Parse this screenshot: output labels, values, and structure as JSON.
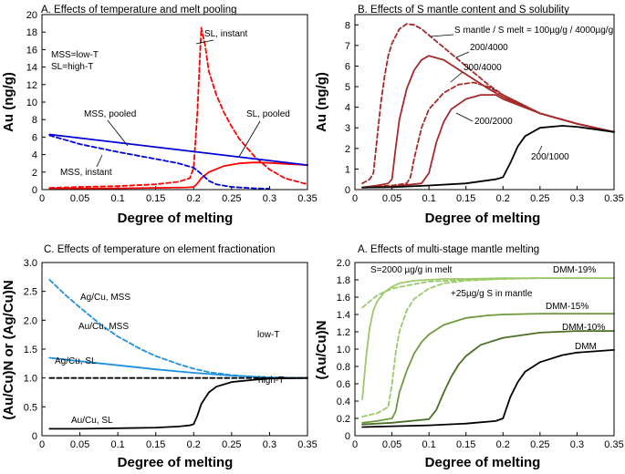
{
  "chart_data": [
    {
      "type": "line",
      "title": "A. Effects of temperature and melt pooling",
      "xlabel": "Degree of melting",
      "ylabel": "Au (ng/g)",
      "xlim": [
        0,
        0.35
      ],
      "ylim": [
        0,
        20
      ],
      "xticks": [
        "0",
        "0.05",
        "0.1",
        "0.15",
        "0.2",
        "0.25",
        "0.3",
        "0.35"
      ],
      "yticks": [
        "0",
        "2",
        "4",
        "6",
        "8",
        "10",
        "12",
        "14",
        "16",
        "18",
        "20"
      ],
      "series": [
        {
          "name": "SL, instant",
          "color": "#ff0000",
          "dash": true,
          "x": [
            0.01,
            0.05,
            0.1,
            0.15,
            0.18,
            0.195,
            0.2,
            0.205,
            0.21,
            0.215,
            0.22,
            0.23,
            0.24,
            0.25,
            0.26,
            0.28,
            0.3,
            0.32,
            0.35
          ],
          "y": [
            0.2,
            0.3,
            0.4,
            0.6,
            0.9,
            1.3,
            2.5,
            9.0,
            18.5,
            16.5,
            13.5,
            10.8,
            8.8,
            7.2,
            5.8,
            3.8,
            2.3,
            1.3,
            0.6
          ]
        },
        {
          "name": "SL, pooled",
          "color": "#ff0000",
          "dash": false,
          "x": [
            0.01,
            0.05,
            0.1,
            0.15,
            0.19,
            0.2,
            0.205,
            0.21,
            0.22,
            0.24,
            0.26,
            0.28,
            0.3,
            0.32,
            0.35
          ],
          "y": [
            0.1,
            0.12,
            0.15,
            0.2,
            0.25,
            0.3,
            0.7,
            1.3,
            2.0,
            2.7,
            3.0,
            3.1,
            3.05,
            2.95,
            2.8
          ]
        },
        {
          "name": "MSS, pooled",
          "color": "#0000dd",
          "dash": false,
          "x": [
            0.01,
            0.35
          ],
          "y": [
            6.3,
            2.8
          ]
        },
        {
          "name": "MSS, instant",
          "color": "#0000dd",
          "dash": true,
          "x": [
            0.01,
            0.05,
            0.1,
            0.15,
            0.18,
            0.2,
            0.21,
            0.22,
            0.23,
            0.25,
            0.28,
            0.3
          ],
          "y": [
            6.2,
            5.2,
            4.3,
            3.5,
            3.0,
            2.5,
            1.8,
            1.0,
            0.6,
            0.3,
            0.15,
            0.1
          ]
        }
      ],
      "annotations": [
        "SL, instant",
        "SL, pooled",
        "MSS, pooled",
        "MSS, instant",
        "MSS=low-T",
        "SL=high-T"
      ]
    },
    {
      "type": "line",
      "title": "B. Effects of S mantle content and S solubility",
      "xlabel": "Degree of melting",
      "ylabel": "Au (ng/g)",
      "xlim": [
        0,
        0.35
      ],
      "ylim": [
        0,
        8.5
      ],
      "xticks": [
        "0",
        "0.05",
        "0.1",
        "0.15",
        "0.2",
        "0.25",
        "0.3",
        "0.35"
      ],
      "yticks": [
        "0",
        "1",
        "2",
        "3",
        "4",
        "5",
        "6",
        "7",
        "8"
      ],
      "series": [
        {
          "name": "100/4000",
          "color": "#a52a2a",
          "dash": true,
          "x": [
            0.01,
            0.02,
            0.025,
            0.03,
            0.035,
            0.04,
            0.045,
            0.05,
            0.06,
            0.07,
            0.08,
            0.09,
            0.1,
            0.12,
            0.15,
            0.18,
            0.2,
            0.25,
            0.3,
            0.35
          ],
          "y": [
            0.3,
            0.5,
            0.8,
            2.5,
            4.2,
            5.5,
            6.5,
            7.1,
            7.8,
            8.05,
            8.0,
            7.8,
            7.5,
            6.9,
            6.0,
            5.1,
            4.6,
            3.7,
            3.2,
            2.8
          ]
        },
        {
          "name": "200/4000",
          "color": "#a52a2a",
          "dash": false,
          "x": [
            0.01,
            0.03,
            0.045,
            0.05,
            0.055,
            0.06,
            0.07,
            0.08,
            0.09,
            0.1,
            0.12,
            0.15,
            0.18,
            0.2,
            0.25,
            0.3,
            0.35
          ],
          "y": [
            0.1,
            0.2,
            0.3,
            0.5,
            2.0,
            3.4,
            4.9,
            5.8,
            6.3,
            6.5,
            6.3,
            5.6,
            4.9,
            4.5,
            3.7,
            3.2,
            2.8
          ]
        },
        {
          "name": "300/4000",
          "color": "#a52a2a",
          "dash": true,
          "x": [
            0.01,
            0.05,
            0.07,
            0.075,
            0.08,
            0.09,
            0.1,
            0.12,
            0.14,
            0.16,
            0.18,
            0.2,
            0.25,
            0.3,
            0.35
          ],
          "y": [
            0.1,
            0.2,
            0.3,
            0.6,
            1.5,
            3.0,
            3.9,
            4.7,
            5.1,
            5.2,
            5.0,
            4.6,
            3.7,
            3.2,
            2.8
          ]
        },
        {
          "name": "200/2000",
          "color": "#a52a2a",
          "dash": false,
          "x": [
            0.01,
            0.05,
            0.09,
            0.1,
            0.11,
            0.12,
            0.13,
            0.15,
            0.17,
            0.19,
            0.2,
            0.25,
            0.3,
            0.35
          ],
          "y": [
            0.1,
            0.15,
            0.3,
            0.8,
            2.3,
            3.3,
            3.9,
            4.4,
            4.6,
            4.6,
            4.4,
            3.7,
            3.2,
            2.8
          ]
        },
        {
          "name": "200/1000",
          "color": "#000000",
          "dash": false,
          "x": [
            0.01,
            0.05,
            0.1,
            0.15,
            0.19,
            0.2,
            0.21,
            0.22,
            0.23,
            0.25,
            0.28,
            0.3,
            0.35
          ],
          "y": [
            0.1,
            0.12,
            0.2,
            0.3,
            0.5,
            0.6,
            1.3,
            2.1,
            2.6,
            3.0,
            3.1,
            3.05,
            2.8
          ]
        }
      ],
      "annotations": [
        "S mantle / S melt = 100µg/g / 4000µg/g",
        "200/4000",
        "300/4000",
        "200/2000",
        "200/1000"
      ]
    },
    {
      "type": "line",
      "title": "C. Effects of temperature on element fractionation",
      "xlabel": "Degree of melting",
      "ylabel": "(Au/Cu)N or (Ag/Cu)N",
      "xlim": [
        0,
        0.35
      ],
      "ylim": [
        0,
        3
      ],
      "xticks": [
        "0",
        "0.05",
        "0.1",
        "0.15",
        "0.2",
        "0.25",
        "0.3",
        "0.35"
      ],
      "yticks": [
        "0",
        "0.5",
        "1.0",
        "1.5",
        "2.0",
        "2.5",
        "3.0"
      ],
      "series": [
        {
          "name": "Ag/Cu, MSS",
          "color": "#1e90e0",
          "dash": true,
          "x": [
            0.01,
            0.03,
            0.05,
            0.08,
            0.1,
            0.13,
            0.15,
            0.18,
            0.2,
            0.22,
            0.25,
            0.28,
            0.3,
            0.35
          ],
          "y": [
            2.7,
            2.45,
            2.22,
            1.9,
            1.72,
            1.5,
            1.38,
            1.24,
            1.16,
            1.1,
            1.05,
            1.02,
            1.0,
            1.0
          ]
        },
        {
          "name": "Au/Cu, MSS",
          "color": "#1e90e0",
          "dash": false,
          "x": [
            0.01,
            0.05,
            0.1,
            0.15,
            0.2,
            0.25,
            0.3,
            0.35
          ],
          "y": [
            1.35,
            1.29,
            1.22,
            1.15,
            1.09,
            1.04,
            1.01,
            1.0
          ]
        },
        {
          "name": "Ag/Cu, SL",
          "color": "#000000",
          "dash": true,
          "x": [
            0.01,
            0.35
          ],
          "y": [
            1.0,
            1.0
          ]
        },
        {
          "name": "Au/Cu, SL",
          "color": "#000000",
          "dash": false,
          "x": [
            0.01,
            0.05,
            0.1,
            0.15,
            0.18,
            0.195,
            0.2,
            0.205,
            0.21,
            0.22,
            0.23,
            0.25,
            0.28,
            0.3,
            0.35
          ],
          "y": [
            0.12,
            0.12,
            0.13,
            0.14,
            0.16,
            0.18,
            0.2,
            0.35,
            0.55,
            0.75,
            0.85,
            0.93,
            0.97,
            0.99,
            1.0
          ]
        }
      ],
      "annotations": [
        "Ag/Cu, MSS",
        "Au/Cu, MSS",
        "Ag/Cu, SL",
        "Au/Cu, SL",
        "low-T",
        "high-T"
      ]
    },
    {
      "type": "line",
      "title": "A. Effects of multi-stage mantle melting",
      "xlabel": "Degree of melting",
      "ylabel": "(Au/Cu)N",
      "xlim": [
        0,
        0.35
      ],
      "ylim": [
        0,
        2.0
      ],
      "xticks": [
        "0",
        "0.05",
        "0.1",
        "0.15",
        "0.2",
        "0.25",
        "0.3",
        "0.35"
      ],
      "yticks": [
        "0",
        "0.2",
        "0.4",
        "0.6",
        "0.8",
        "1.0",
        "1.2",
        "1.4",
        "1.6",
        "1.8",
        "2.0"
      ],
      "series": [
        {
          "name": "DMM-19%",
          "color": "#9bc96a",
          "dash": false,
          "x": [
            0.01,
            0.015,
            0.02,
            0.025,
            0.03,
            0.04,
            0.05,
            0.06,
            0.08,
            0.1,
            0.12,
            0.15,
            0.2,
            0.25,
            0.3,
            0.35
          ],
          "y": [
            0.42,
            0.9,
            1.25,
            1.45,
            1.55,
            1.66,
            1.72,
            1.76,
            1.79,
            1.8,
            1.81,
            1.81,
            1.82,
            1.82,
            1.82,
            1.82
          ]
        },
        {
          "name": "S=2000 µg/g in melt",
          "color": "#9bc96a",
          "dash": true,
          "x": [
            0.01,
            0.03,
            0.05,
            0.08,
            0.1,
            0.15,
            0.2,
            0.25,
            0.3,
            0.35
          ],
          "y": [
            1.48,
            1.62,
            1.7,
            1.75,
            1.78,
            1.8,
            1.81,
            1.82,
            1.82,
            1.82
          ]
        },
        {
          "name": "+25µg/g S in mantle",
          "color": "#9bc96a",
          "dash": true,
          "x": [
            0.01,
            0.03,
            0.045,
            0.05,
            0.055,
            0.06,
            0.07,
            0.08,
            0.1,
            0.12,
            0.15,
            0.2,
            0.25,
            0.3,
            0.35
          ],
          "y": [
            0.22,
            0.26,
            0.33,
            0.6,
            0.95,
            1.2,
            1.45,
            1.58,
            1.7,
            1.76,
            1.79,
            1.81,
            1.82,
            1.82,
            1.82
          ]
        },
        {
          "name": "DMM-15%",
          "color": "#6e9a3c",
          "dash": false,
          "x": [
            0.01,
            0.03,
            0.05,
            0.055,
            0.06,
            0.07,
            0.08,
            0.09,
            0.1,
            0.12,
            0.15,
            0.18,
            0.2,
            0.25,
            0.3,
            0.35
          ],
          "y": [
            0.15,
            0.17,
            0.2,
            0.28,
            0.5,
            0.75,
            0.95,
            1.08,
            1.17,
            1.28,
            1.36,
            1.39,
            1.4,
            1.41,
            1.41,
            1.41
          ]
        },
        {
          "name": "DMM-10%",
          "color": "#4a6e24",
          "dash": false,
          "x": [
            0.01,
            0.05,
            0.1,
            0.11,
            0.12,
            0.13,
            0.14,
            0.15,
            0.17,
            0.2,
            0.25,
            0.3,
            0.35
          ],
          "y": [
            0.13,
            0.15,
            0.19,
            0.3,
            0.5,
            0.68,
            0.82,
            0.92,
            1.05,
            1.13,
            1.19,
            1.21,
            1.21
          ]
        },
        {
          "name": "DMM",
          "color": "#000000",
          "dash": false,
          "x": [
            0.01,
            0.05,
            0.1,
            0.15,
            0.19,
            0.2,
            0.21,
            0.22,
            0.23,
            0.25,
            0.28,
            0.3,
            0.35
          ],
          "y": [
            0.1,
            0.11,
            0.12,
            0.14,
            0.17,
            0.2,
            0.45,
            0.62,
            0.74,
            0.85,
            0.93,
            0.96,
            0.99
          ]
        }
      ],
      "annotations": [
        "S=2000 µg/g in melt",
        "+25µg/g S in mantle",
        "DMM-19%",
        "DMM-15%",
        "DMM-10%",
        "DMM"
      ]
    }
  ]
}
